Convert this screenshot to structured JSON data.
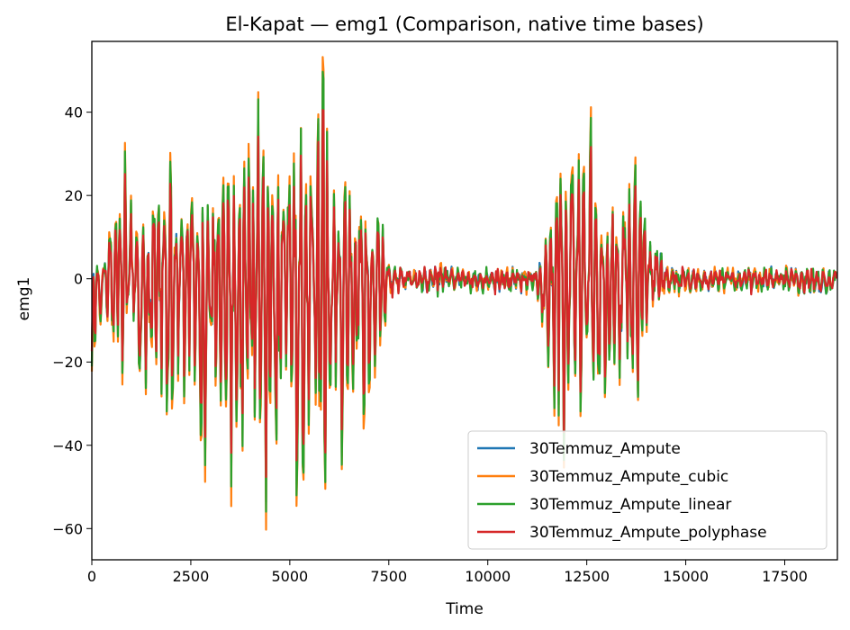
{
  "chart_data": {
    "type": "line",
    "title": "El-Kapat — emg1 (Comparison, native time bases)",
    "xlabel": "Time",
    "ylabel": "emg1",
    "xlim": [
      0,
      18830
    ],
    "ylim": [
      -67.5,
      57
    ],
    "xticks": [
      0,
      2500,
      5000,
      7500,
      10000,
      12500,
      15000,
      17500
    ],
    "xtick_labels": [
      "0",
      "2500",
      "5000",
      "7500",
      "10000",
      "12500",
      "15000",
      "17500"
    ],
    "yticks": [
      40,
      20,
      0,
      -20,
      -40,
      -60
    ],
    "ytick_labels": [
      "40",
      "20",
      "0",
      "−20",
      "−40",
      "−60"
    ],
    "grid": false,
    "legend_position": "lower-right",
    "series": [
      {
        "name": "30Temmuz_Ampute",
        "color": "#1f77b4"
      },
      {
        "name": "30Temmuz_Ampute_cubic",
        "color": "#ff7f0e"
      },
      {
        "name": "30Temmuz_Ampute_linear",
        "color": "#2ca02c"
      },
      {
        "name": "30Temmuz_Ampute_polyphase",
        "color": "#d62728"
      }
    ],
    "envelope": {
      "t": [
        0,
        300,
        600,
        800,
        1000,
        1250,
        1500,
        1750,
        2000,
        2300,
        2600,
        2850,
        3100,
        3400,
        3650,
        3900,
        4150,
        4400,
        4650,
        4950,
        5200,
        5500,
        5800,
        6050,
        6300,
        6600,
        6900,
        7100,
        7300,
        7500,
        8000,
        8800,
        9500,
        10500,
        11200,
        11500,
        11700,
        11900,
        12150,
        12350,
        12600,
        12850,
        13100,
        13400,
        13700,
        13950,
        14200,
        14500,
        15000,
        16000,
        17000,
        18000,
        18830
      ],
      "pos": [
        1,
        2,
        18,
        22,
        24,
        16,
        19,
        16,
        29,
        20,
        24,
        20,
        22,
        26,
        18,
        30,
        41,
        28,
        27,
        24,
        33,
        31,
        48,
        20,
        24,
        16,
        20,
        13,
        16,
        3,
        2,
        3,
        1.5,
        2,
        2,
        10,
        19,
        24,
        30,
        25,
        28,
        23,
        21,
        18,
        35,
        16,
        8,
        3,
        2,
        2,
        2,
        2,
        2
      ],
      "neg": [
        -20,
        -5,
        -26,
        -24,
        -15,
        -26,
        -23,
        -27,
        -34,
        -25,
        -36,
        -40,
        -38,
        -28,
        -56,
        -44,
        -48,
        -50,
        -44,
        -40,
        -52,
        -42,
        -60,
        -25,
        -40,
        -36,
        -32,
        -20,
        -20,
        -4,
        -3,
        -3,
        -2,
        -3,
        -3,
        -17,
        -34,
        -38,
        -40,
        -34,
        -28,
        -27,
        -22,
        -27,
        -33,
        -20,
        -5,
        -4,
        -3,
        -3,
        -3,
        -3,
        -3
      ]
    }
  }
}
